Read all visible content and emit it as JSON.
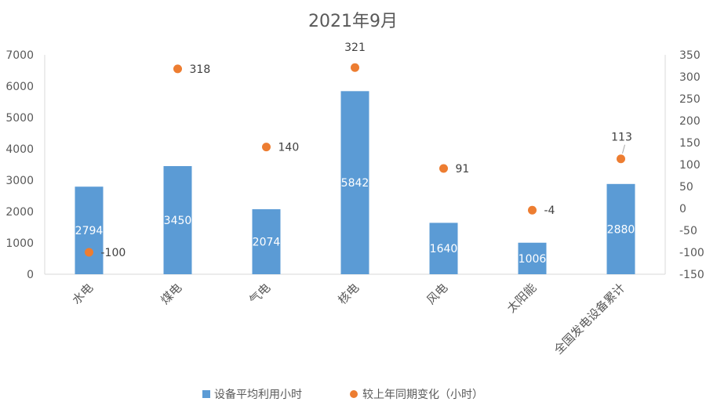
{
  "chart_data": {
    "type": "bar",
    "title": "2021年9月",
    "categories": [
      "水电",
      "煤电",
      "气电",
      "核电",
      "风电",
      "太阳能",
      "全国发电设备累计"
    ],
    "series": [
      {
        "name": "设备平均利用小时",
        "type": "bar",
        "axis": "left",
        "color": "#5B9BD5",
        "values": [
          2794,
          3450,
          2074,
          5842,
          1640,
          1006,
          2880
        ]
      },
      {
        "name": "较上年同期变化（小时）",
        "type": "scatter",
        "axis": "right",
        "color": "#ED7D31",
        "values": [
          -100,
          318,
          140,
          321,
          91,
          -4,
          113
        ]
      }
    ],
    "y_left": {
      "min": 0,
      "max": 7000,
      "step": 1000,
      "ticks": [
        "0",
        "1000",
        "2000",
        "3000",
        "4000",
        "5000",
        "6000",
        "7000"
      ]
    },
    "y_right": {
      "min": -150,
      "max": 350,
      "step": 50,
      "ticks": [
        "-150",
        "-100",
        "-50",
        "0",
        "50",
        "100",
        "150",
        "200",
        "250",
        "300",
        "350"
      ]
    },
    "legend_position": "bottom",
    "grid": false
  }
}
